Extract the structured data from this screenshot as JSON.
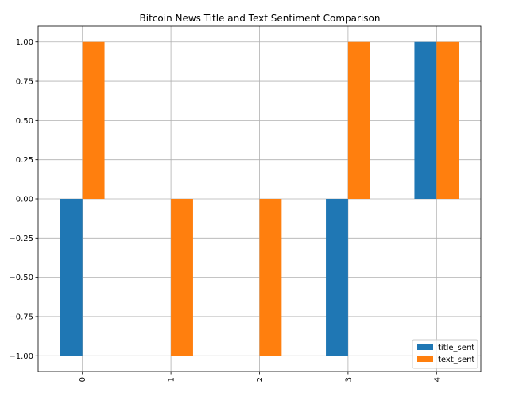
{
  "chart_data": {
    "type": "bar",
    "title": "Bitcoin News Title and Text Sentiment Comparison",
    "xlabel": "",
    "ylabel": "",
    "categories": [
      "0",
      "1",
      "2",
      "3",
      "4"
    ],
    "series": [
      {
        "name": "title_sent",
        "values": [
          -1.0,
          0.0,
          0.0,
          -1.0,
          1.0
        ],
        "color": "#1f77b4"
      },
      {
        "name": "text_sent",
        "values": [
          1.0,
          -1.0,
          -1.0,
          1.0,
          1.0
        ],
        "color": "#ff7f0e"
      }
    ],
    "ylim": [
      -1.1,
      1.1
    ],
    "yticks": [
      "1.00",
      "0.75",
      "0.50",
      "0.25",
      "0.00",
      "−0.25",
      "−0.50",
      "−0.75",
      "−1.00"
    ],
    "ytick_values": [
      1.0,
      0.75,
      0.5,
      0.25,
      0.0,
      -0.25,
      -0.5,
      -0.75,
      -1.0
    ],
    "grid": true,
    "legend_position": "bottom-right",
    "xtick_rotation": "vertical"
  }
}
